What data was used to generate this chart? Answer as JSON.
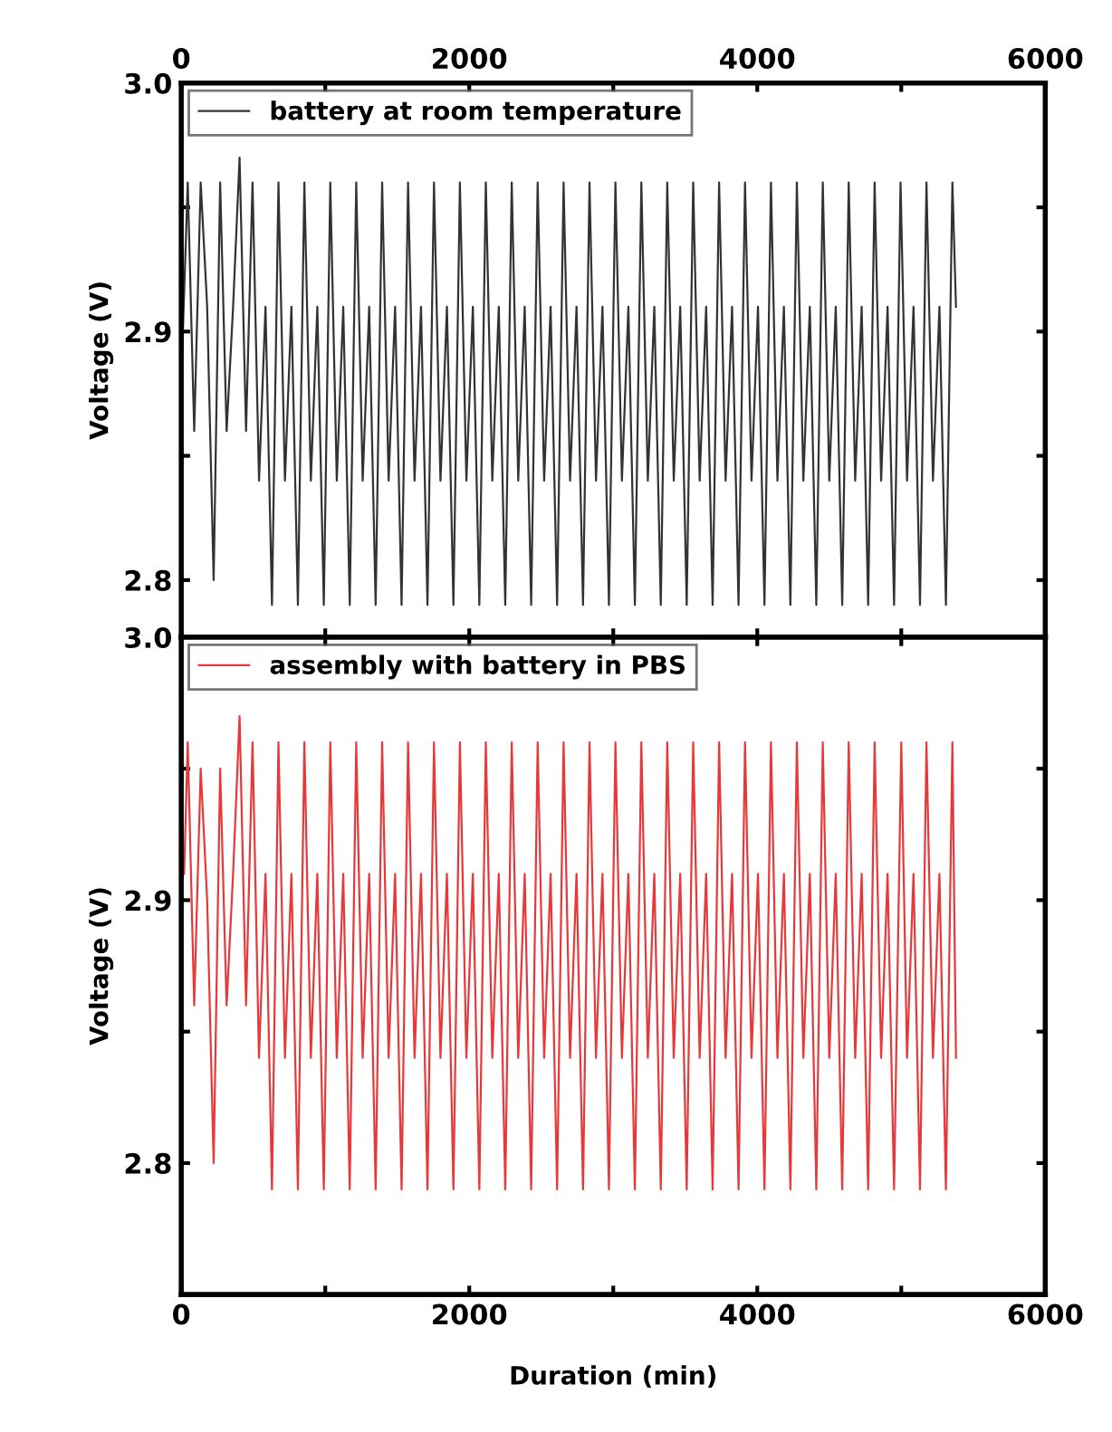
{
  "chart_data": [
    {
      "type": "line",
      "ylabel": "Voltage (V)",
      "xlim": [
        0,
        6000
      ],
      "xticks": [
        0,
        {
          "value": 1000,
          "label": null
        },
        2000,
        {
          "value": 3000,
          "label": null
        },
        4000,
        {
          "value": 5000,
          "label": null
        },
        6000
      ],
      "ylim": [
        2.777,
        3.0
      ],
      "yticks": [
        {
          "value": 2.8,
          "label": "2.8"
        },
        {
          "value": 2.85,
          "label": null
        },
        {
          "value": 2.9,
          "label": "2.9"
        },
        {
          "value": 2.95,
          "label": null
        },
        {
          "value": 3.0,
          "label": "3.0"
        }
      ],
      "legend": "top left",
      "grid": false,
      "line_style": "solid",
      "series": [
        {
          "name": "battery at room temperature",
          "color": "#333333",
          "x": [
            0,
            45,
            90,
            135,
            180,
            225,
            270,
            315,
            360,
            405,
            450,
            495,
            540,
            585,
            630,
            675,
            720,
            765,
            810,
            855,
            900,
            945,
            990,
            1035,
            1080,
            1125,
            1170,
            1215,
            1260,
            1305,
            1350,
            1395,
            1440,
            1485,
            1530,
            1575,
            1620,
            1665,
            1710,
            1755,
            1800,
            1845,
            1890,
            1935,
            1980,
            2025,
            2070,
            2115,
            2160,
            2205,
            2250,
            2295,
            2340,
            2385,
            2430,
            2475,
            2520,
            2565,
            2610,
            2655,
            2700,
            2745,
            2790,
            2835,
            2880,
            2925,
            2970,
            3015,
            3060,
            3105,
            3150,
            3195,
            3240,
            3285,
            3330,
            3375,
            3420,
            3465,
            3510,
            3555,
            3600,
            3645,
            3690,
            3735,
            3780,
            3825,
            3870,
            3915,
            3960,
            4005,
            4050,
            4095,
            4140,
            4185,
            4230,
            4275,
            4320,
            4365,
            4410,
            4455,
            4500,
            4545,
            4590,
            4635,
            4680,
            4725,
            4770,
            4815,
            4860,
            4905,
            4950,
            4995,
            5040,
            5085,
            5130,
            5175,
            5220,
            5265,
            5310,
            5355,
            5380
          ],
          "values": [
            2.88,
            2.96,
            2.86,
            2.96,
            2.91,
            2.8,
            2.96,
            2.86,
            2.91,
            2.97,
            2.86,
            2.96,
            2.84,
            2.91,
            2.79,
            2.96,
            2.84,
            2.91,
            2.79,
            2.96,
            2.84,
            2.91,
            2.79,
            2.96,
            2.84,
            2.91,
            2.79,
            2.96,
            2.84,
            2.91,
            2.79,
            2.96,
            2.84,
            2.91,
            2.79,
            2.96,
            2.84,
            2.91,
            2.79,
            2.96,
            2.84,
            2.91,
            2.79,
            2.96,
            2.84,
            2.91,
            2.79,
            2.96,
            2.84,
            2.91,
            2.79,
            2.96,
            2.84,
            2.91,
            2.79,
            2.96,
            2.84,
            2.91,
            2.79,
            2.96,
            2.84,
            2.91,
            2.79,
            2.96,
            2.84,
            2.91,
            2.79,
            2.96,
            2.84,
            2.91,
            2.79,
            2.96,
            2.84,
            2.91,
            2.79,
            2.96,
            2.84,
            2.91,
            2.79,
            2.96,
            2.84,
            2.91,
            2.79,
            2.96,
            2.84,
            2.91,
            2.79,
            2.96,
            2.84,
            2.91,
            2.79,
            2.96,
            2.84,
            2.91,
            2.79,
            2.96,
            2.84,
            2.91,
            2.79,
            2.96,
            2.84,
            2.91,
            2.79,
            2.96,
            2.84,
            2.91,
            2.79,
            2.96,
            2.84,
            2.91,
            2.79,
            2.96,
            2.84,
            2.91,
            2.79,
            2.96,
            2.84,
            2.91,
            2.79,
            2.96,
            2.91
          ]
        }
      ]
    },
    {
      "type": "line",
      "xlabel": "Duration (min)",
      "ylabel": "Voltage (V)",
      "xlim": [
        0,
        6000
      ],
      "xticks": [
        0,
        {
          "value": 1000,
          "label": null
        },
        2000,
        {
          "value": 3000,
          "label": null
        },
        4000,
        {
          "value": 5000,
          "label": null
        },
        6000
      ],
      "ylim": [
        2.75,
        3.0
      ],
      "yticks": [
        {
          "value": 2.8,
          "label": "2.8"
        },
        {
          "value": 2.85,
          "label": null
        },
        {
          "value": 2.9,
          "label": "2.9"
        },
        {
          "value": 2.95,
          "label": null
        },
        {
          "value": 3.0,
          "label": "3.0"
        }
      ],
      "legend": "top left",
      "grid": false,
      "line_style": "solid",
      "series": [
        {
          "name": "assembly with battery in PBS",
          "color": "#e8393a",
          "x": [
            20,
            45,
            90,
            135,
            180,
            225,
            270,
            315,
            360,
            405,
            450,
            495,
            540,
            585,
            630,
            675,
            720,
            765,
            810,
            855,
            900,
            945,
            990,
            1035,
            1080,
            1125,
            1170,
            1215,
            1260,
            1305,
            1350,
            1395,
            1440,
            1485,
            1530,
            1575,
            1620,
            1665,
            1710,
            1755,
            1800,
            1845,
            1890,
            1935,
            1980,
            2025,
            2070,
            2115,
            2160,
            2205,
            2250,
            2295,
            2340,
            2385,
            2430,
            2475,
            2520,
            2565,
            2610,
            2655,
            2700,
            2745,
            2790,
            2835,
            2880,
            2925,
            2970,
            3015,
            3060,
            3105,
            3150,
            3195,
            3240,
            3285,
            3330,
            3375,
            3420,
            3465,
            3510,
            3555,
            3600,
            3645,
            3690,
            3735,
            3780,
            3825,
            3870,
            3915,
            3960,
            4005,
            4050,
            4095,
            4140,
            4185,
            4230,
            4275,
            4320,
            4365,
            4410,
            4455,
            4500,
            4545,
            4590,
            4635,
            4680,
            4725,
            4770,
            4815,
            4860,
            4905,
            4950,
            5000,
            5040,
            5085,
            5130,
            5175,
            5220,
            5265,
            5310,
            5355,
            5380
          ],
          "values": [
            2.91,
            2.96,
            2.86,
            2.95,
            2.9,
            2.8,
            2.95,
            2.86,
            2.91,
            2.97,
            2.86,
            2.96,
            2.84,
            2.91,
            2.79,
            2.96,
            2.84,
            2.91,
            2.79,
            2.96,
            2.84,
            2.91,
            2.79,
            2.96,
            2.84,
            2.91,
            2.79,
            2.96,
            2.84,
            2.91,
            2.79,
            2.96,
            2.84,
            2.91,
            2.79,
            2.96,
            2.84,
            2.91,
            2.79,
            2.96,
            2.84,
            2.91,
            2.79,
            2.96,
            2.84,
            2.91,
            2.79,
            2.96,
            2.84,
            2.91,
            2.79,
            2.96,
            2.84,
            2.91,
            2.79,
            2.96,
            2.84,
            2.91,
            2.79,
            2.96,
            2.84,
            2.91,
            2.79,
            2.96,
            2.84,
            2.91,
            2.79,
            2.96,
            2.84,
            2.91,
            2.79,
            2.96,
            2.84,
            2.91,
            2.79,
            2.96,
            2.84,
            2.91,
            2.79,
            2.96,
            2.84,
            2.91,
            2.79,
            2.96,
            2.84,
            2.91,
            2.79,
            2.96,
            2.84,
            2.91,
            2.79,
            2.96,
            2.84,
            2.91,
            2.79,
            2.96,
            2.84,
            2.91,
            2.79,
            2.96,
            2.84,
            2.91,
            2.79,
            2.96,
            2.84,
            2.91,
            2.79,
            2.96,
            2.84,
            2.91,
            2.79,
            2.96,
            2.84,
            2.91,
            2.79,
            2.96,
            2.84,
            2.91,
            2.79,
            2.96,
            2.84
          ]
        }
      ]
    }
  ]
}
